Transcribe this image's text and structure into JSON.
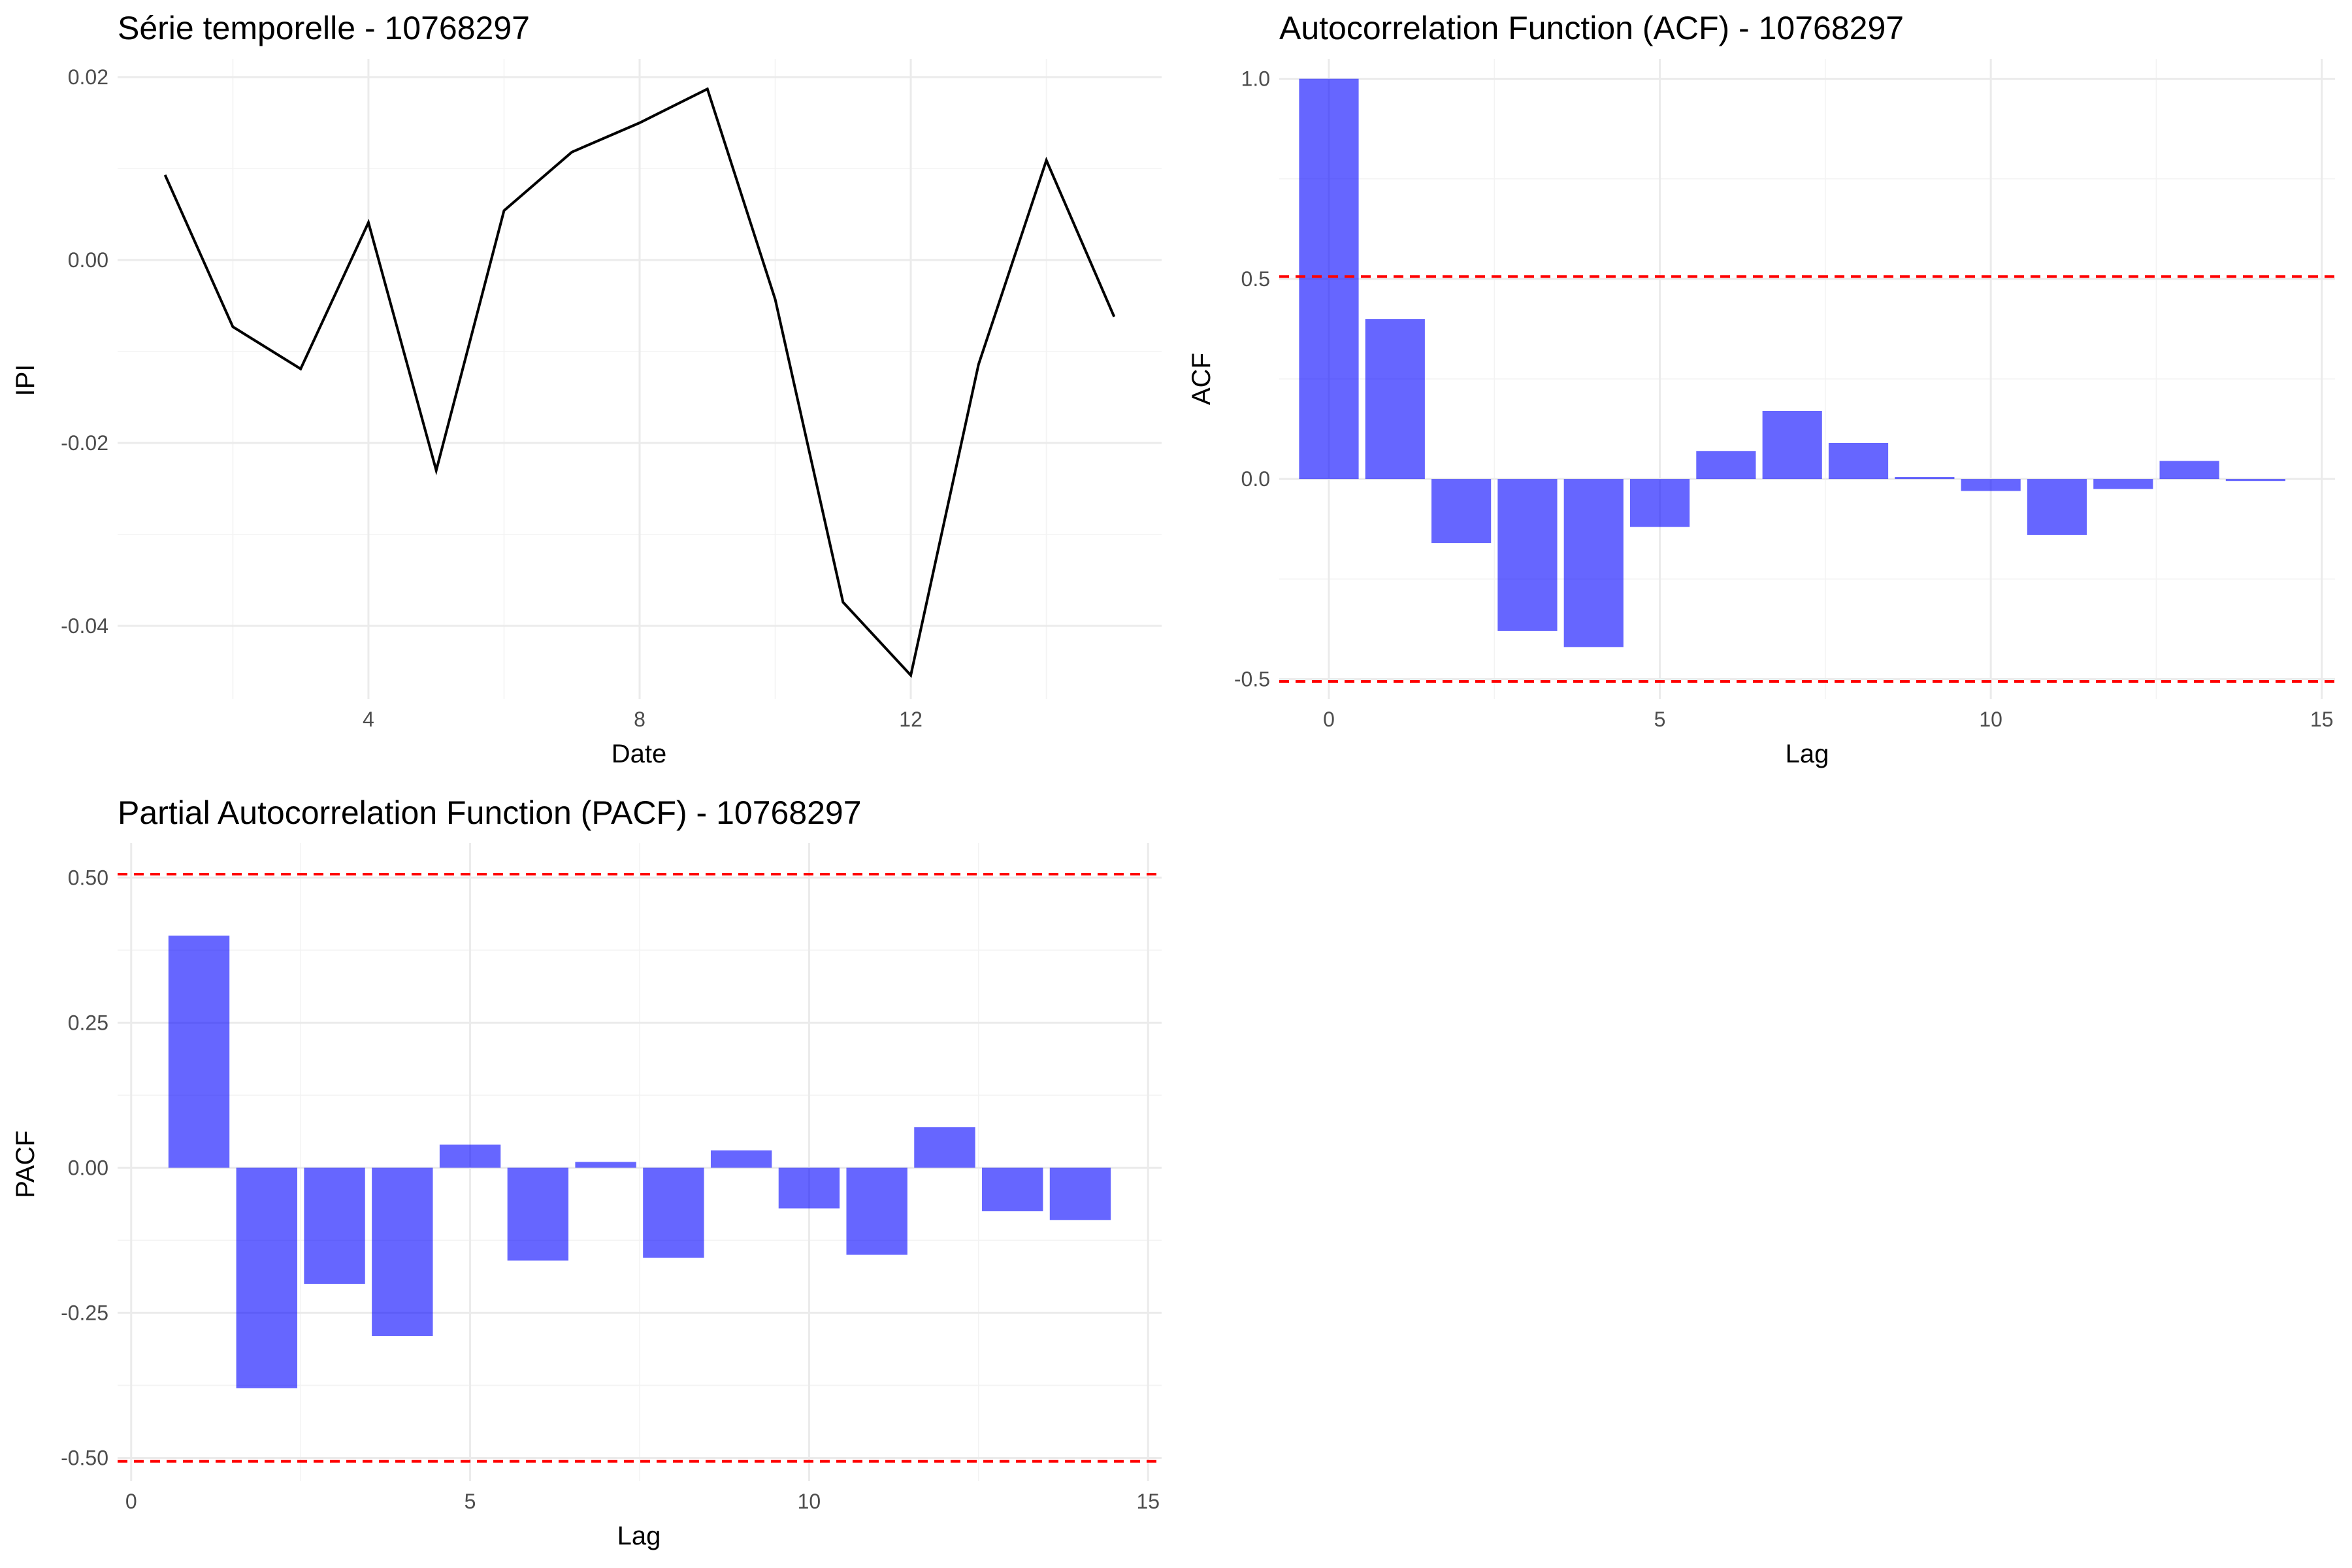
{
  "chart_data": [
    {
      "type": "line",
      "title": "Série temporelle - 10768297",
      "xlabel": "Date",
      "ylabel": "IPI",
      "x": [
        1,
        2,
        3,
        4,
        5,
        6,
        7,
        8,
        9,
        10,
        11,
        12,
        13,
        14,
        15
      ],
      "values": [
        0.0093,
        -0.0073,
        -0.0119,
        0.0041,
        -0.023,
        0.0054,
        0.0118,
        0.015,
        0.0187,
        -0.0043,
        -0.0374,
        -0.0454,
        -0.0114,
        0.0109,
        -0.0062
      ],
      "xlim": [
        0.3,
        15.7
      ],
      "ylim": [
        -0.048,
        0.022
      ],
      "xticks": [
        4,
        8,
        12
      ],
      "xtick_labels": [
        "4",
        "8",
        "12"
      ],
      "yticks": [
        -0.04,
        -0.02,
        0.0,
        0.02
      ],
      "ytick_labels": [
        "-0.04",
        "-0.02",
        "0.00",
        "0.02"
      ],
      "grid": true,
      "line_color": "#000000"
    },
    {
      "type": "bar",
      "title": "Autocorrelation Function (ACF) - 10768297",
      "xlabel": "Lag",
      "ylabel": "ACF",
      "x": [
        0,
        1,
        2,
        3,
        4,
        5,
        6,
        7,
        8,
        9,
        10,
        11,
        12,
        13,
        14
      ],
      "values": [
        1.0,
        0.4,
        -0.16,
        -0.38,
        -0.42,
        -0.12,
        0.07,
        0.17,
        0.09,
        0.005,
        -0.03,
        -0.14,
        -0.025,
        0.045,
        -0.005
      ],
      "reference_lines": [
        0.506,
        -0.506
      ],
      "xlim": [
        -0.75,
        15.2
      ],
      "ylim": [
        -0.55,
        1.05
      ],
      "xticks": [
        0,
        5,
        10,
        15
      ],
      "xtick_labels": [
        "0",
        "5",
        "10",
        "15"
      ],
      "yticks": [
        -0.5,
        0.0,
        0.5,
        1.0
      ],
      "ytick_labels": [
        "-0.5",
        "0.0",
        "0.5",
        "1.0"
      ],
      "grid": true,
      "bar_color": "#0000ff",
      "reference_color": "#ff0000"
    },
    {
      "type": "bar",
      "title": "Partial Autocorrelation Function (PACF) - 10768297",
      "xlabel": "Lag",
      "ylabel": "PACF",
      "x": [
        1,
        2,
        3,
        4,
        5,
        6,
        7,
        8,
        9,
        10,
        11,
        12,
        13,
        14
      ],
      "values": [
        0.4,
        -0.38,
        -0.2,
        -0.29,
        0.04,
        -0.16,
        0.01,
        -0.155,
        0.03,
        -0.07,
        -0.15,
        0.07,
        -0.075,
        -0.09
      ],
      "reference_lines": [
        0.506,
        -0.506
      ],
      "xlim": [
        -0.2,
        15.2
      ],
      "ylim": [
        -0.54,
        0.56
      ],
      "xticks": [
        0,
        5,
        10,
        15
      ],
      "xtick_labels": [
        "0",
        "5",
        "10",
        "15"
      ],
      "yticks": [
        -0.5,
        -0.25,
        0.0,
        0.25,
        0.5
      ],
      "ytick_labels": [
        "-0.50",
        "-0.25",
        "0.00",
        "0.25",
        "0.50"
      ],
      "grid": true,
      "bar_color": "#0000ff",
      "reference_color": "#ff0000"
    }
  ]
}
